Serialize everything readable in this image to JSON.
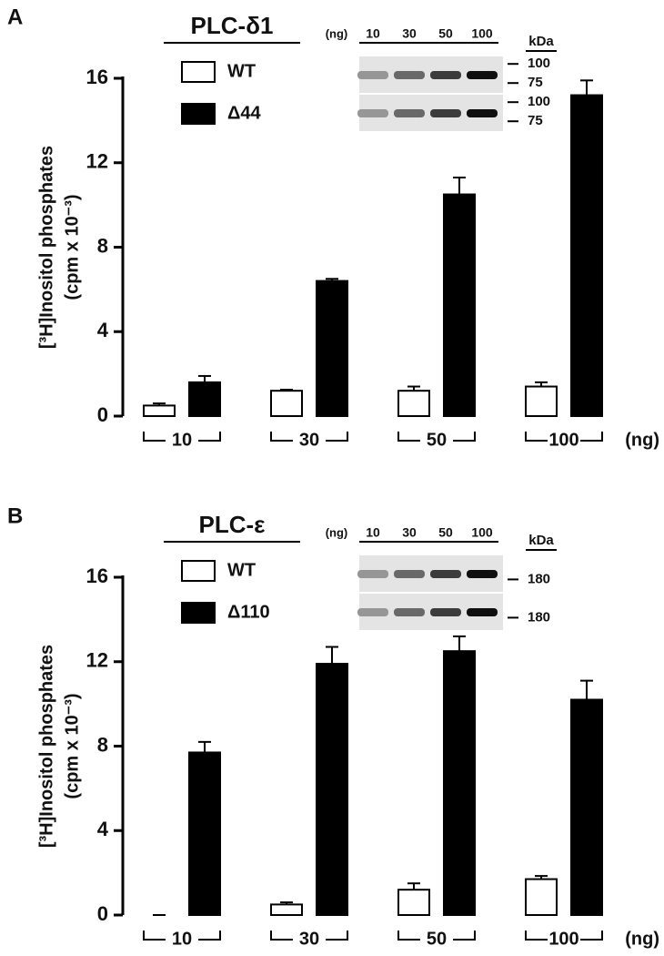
{
  "chart_data": [
    {
      "type": "bar",
      "panel": "A",
      "title": "PLC-δ1",
      "ylabel": [
        "[³H]Inositol phosphates",
        "(cpm x 10⁻³)"
      ],
      "categories": [
        "10",
        "30",
        "50",
        "100"
      ],
      "xunit": "(ng)",
      "series": [
        {
          "name": "WT",
          "color": "#ffffff",
          "values": [
            0.5,
            1.2,
            1.2,
            1.4
          ],
          "errors": [
            0.1,
            0.05,
            0.2,
            0.2
          ]
        },
        {
          "name": "Δ44",
          "color": "#000000",
          "values": [
            1.6,
            6.4,
            10.5,
            15.2
          ],
          "errors": [
            0.3,
            0.1,
            0.8,
            0.7
          ]
        }
      ],
      "ylim": [
        0,
        16
      ],
      "yticks": [
        0,
        4,
        8,
        12,
        16
      ],
      "inset": {
        "lanes_label": "(ng)",
        "lanes": [
          "10",
          "30",
          "50",
          "100"
        ],
        "unit_label": "kDa",
        "markers": [
          100,
          75,
          100,
          75
        ]
      }
    },
    {
      "type": "bar",
      "panel": "B",
      "title": "PLC-ε",
      "ylabel": [
        "[³H]Inositol phosphates",
        "(cpm x 10⁻³)"
      ],
      "categories": [
        "10",
        "30",
        "50",
        "100"
      ],
      "xunit": "(ng)",
      "series": [
        {
          "name": "WT",
          "color": "#ffffff",
          "values": [
            0,
            0.5,
            1.2,
            1.7
          ],
          "errors": [
            0,
            0.1,
            0.3,
            0.15
          ]
        },
        {
          "name": "Δ110",
          "color": "#000000",
          "values": [
            7.7,
            11.9,
            12.5,
            10.2
          ],
          "errors": [
            0.5,
            0.8,
            0.7,
            0.9
          ]
        }
      ],
      "ylim": [
        0,
        16
      ],
      "yticks": [
        0,
        4,
        8,
        12,
        16
      ],
      "inset": {
        "lanes_label": "(ng)",
        "lanes": [
          "10",
          "30",
          "50",
          "100"
        ],
        "unit_label": "kDa",
        "markers": [
          180,
          180
        ]
      }
    }
  ]
}
